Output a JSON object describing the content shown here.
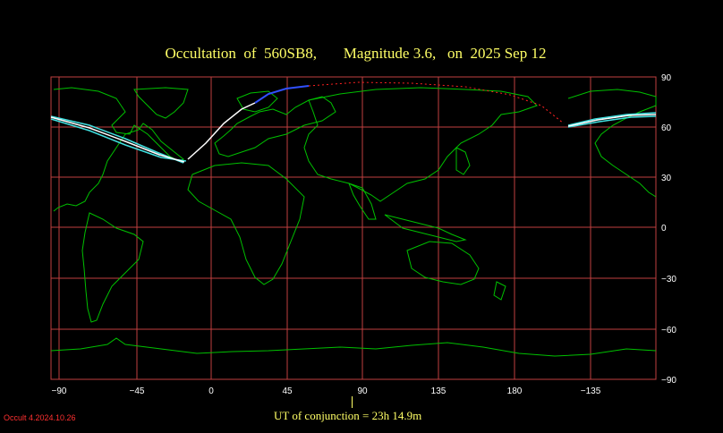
{
  "title": "Occultation  of  560SB8,       Magnitude 3.6,   on  2025 Sep 12",
  "x_ticks": [
    "−90",
    "−45",
    "0",
    "45",
    "90",
    "135",
    "180",
    "−135"
  ],
  "y_ticks": [
    "90",
    "60",
    "30",
    "0",
    "−30",
    "−60",
    "−90"
  ],
  "utc_label": "UT of conjunction = 23h 14.9m",
  "version": "Occult 4.2024.10.26",
  "colors": {
    "title": "#ffff66",
    "grid": "#c04040",
    "coast": "#00c000",
    "path_center": "#ffffff",
    "path_edge": "#40e0e0",
    "path_high": "#3050ff",
    "path_dotted": "#ff2020"
  }
}
